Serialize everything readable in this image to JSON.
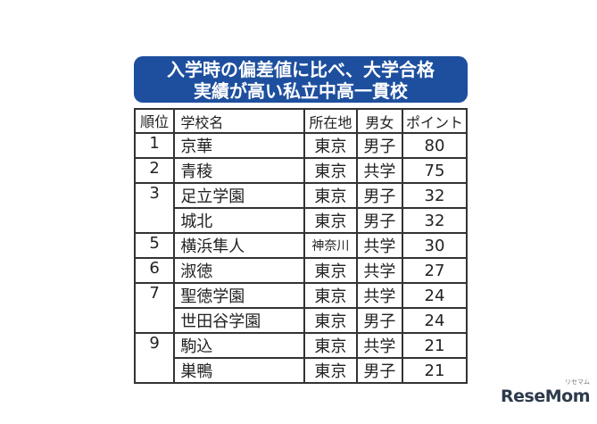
{
  "title": {
    "line1": "入学時の偏差値に比べ、大学合格",
    "line2": "実績が高い私立中高一貫校"
  },
  "table": {
    "headers": [
      "順位",
      "学校名",
      "所在地",
      "男女",
      "ポイント"
    ],
    "rows": [
      {
        "rank": "1",
        "name": "京華",
        "location": "東京",
        "gender": "男子",
        "points": "80"
      },
      {
        "rank": "2",
        "name": "青稜",
        "location": "東京",
        "gender": "共学",
        "points": "75"
      },
      {
        "rank": "3",
        "name": "足立学園",
        "location": "東京",
        "gender": "男子",
        "points": "32"
      },
      {
        "rank": "",
        "name": "城北",
        "location": "東京",
        "gender": "男子",
        "points": "32"
      },
      {
        "rank": "5",
        "name": "横浜隼人",
        "location": "神奈川",
        "gender": "共学",
        "points": "30"
      },
      {
        "rank": "6",
        "name": "淑徳",
        "location": "東京",
        "gender": "共学",
        "points": "27"
      },
      {
        "rank": "7",
        "name": "聖徳学園",
        "location": "東京",
        "gender": "共学",
        "points": "24"
      },
      {
        "rank": "",
        "name": "世田谷学園",
        "location": "東京",
        "gender": "男子",
        "points": "24"
      },
      {
        "rank": "9",
        "name": "駒込",
        "location": "東京",
        "gender": "共学",
        "points": "21"
      },
      {
        "rank": "",
        "name": "巣鴨",
        "location": "東京",
        "gender": "男子",
        "points": "21"
      }
    ]
  },
  "logo": {
    "text": "ReseMom",
    "sub": "リセマム"
  },
  "colors": {
    "title_bg": "#1d4f9e",
    "title_text": "#ffffff"
  }
}
